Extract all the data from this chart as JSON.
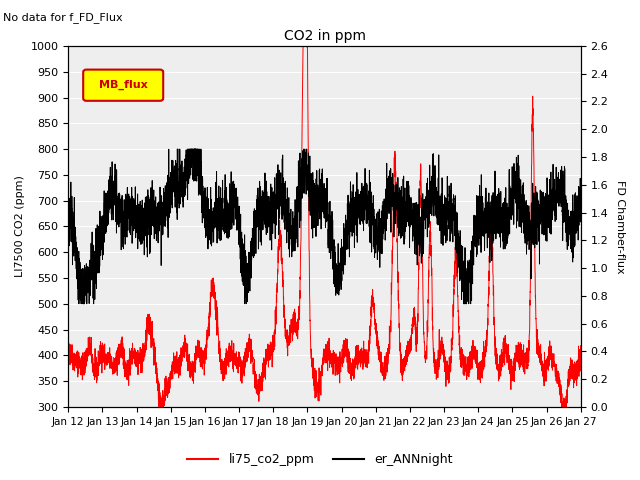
{
  "title": "CO2 in ppm",
  "top_left_text": "No data for f_FD_Flux",
  "ylabel_left": "LI7500 CO2 (ppm)",
  "ylabel_right": "FD Chamber-flux",
  "ylim_left": [
    300,
    1000
  ],
  "ylim_right": [
    0.0,
    2.6
  ],
  "yticks_left": [
    300,
    350,
    400,
    450,
    500,
    550,
    600,
    650,
    700,
    750,
    800,
    850,
    900,
    950,
    1000
  ],
  "yticks_right": [
    0.0,
    0.2,
    0.4,
    0.6,
    0.8,
    1.0,
    1.2,
    1.4,
    1.6,
    1.8,
    2.0,
    2.2,
    2.4,
    2.6
  ],
  "xticklabels": [
    "Jan 12",
    "Jan 13",
    "Jan 14",
    "Jan 15",
    "Jan 16",
    "Jan 17",
    "Jan 18",
    "Jan 19",
    "Jan 20",
    "Jan 21",
    "Jan 22",
    "Jan 23",
    "Jan 24",
    "Jan 25",
    "Jan 26",
    "Jan 27"
  ],
  "legend_entries": [
    "li75_co2_ppm",
    "er_ANNnight"
  ],
  "legend_colors": [
    "red",
    "black"
  ],
  "line1_color": "red",
  "line2_color": "black",
  "mb_flux_color": "#ffff00",
  "mb_flux_edge": "#cc0000",
  "background_color": "white",
  "grid_color": "white",
  "axes_facecolor": "#eeeeee",
  "seed": 42,
  "n_points": 4000
}
